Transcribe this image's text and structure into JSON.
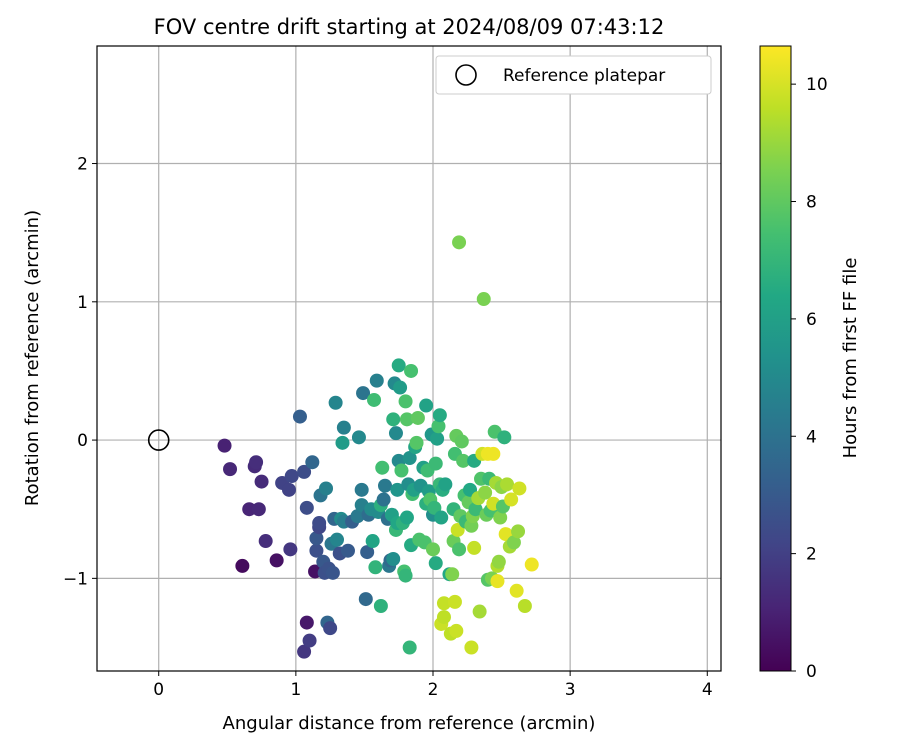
{
  "chart_data": {
    "type": "scatter",
    "title": "FOV centre drift starting at 2024/08/09 07:43:12",
    "xlabel": "Angular distance from reference (arcmin)",
    "ylabel": "Rotation from reference (arcmin)",
    "xlim": [
      -0.45,
      4.1
    ],
    "ylim": [
      -1.67,
      2.85
    ],
    "xticks": [
      0,
      1,
      2,
      3,
      4
    ],
    "yticks": [
      -1,
      0,
      1,
      2
    ],
    "grid": true,
    "legend": {
      "placement": "top-right",
      "label": "Reference platepar"
    },
    "reference_point": {
      "x": 0,
      "y": 0
    },
    "colorbar": {
      "label": "Hours from first FF file",
      "colormap": "viridis",
      "range": [
        0,
        10.65
      ],
      "ticks": [
        0,
        2,
        4,
        6,
        8,
        10
      ]
    },
    "points": [
      {
        "x": 0.48,
        "y": -0.04,
        "h": 1.0
      },
      {
        "x": 0.52,
        "y": -0.21,
        "h": 1.2
      },
      {
        "x": 0.61,
        "y": -0.91,
        "h": 0.3
      },
      {
        "x": 0.66,
        "y": -0.5,
        "h": 1.1
      },
      {
        "x": 0.7,
        "y": -0.19,
        "h": 1.3
      },
      {
        "x": 0.71,
        "y": -0.16,
        "h": 1.4
      },
      {
        "x": 0.73,
        "y": -0.5,
        "h": 1.2
      },
      {
        "x": 0.75,
        "y": -0.3,
        "h": 1.3
      },
      {
        "x": 0.78,
        "y": -0.73,
        "h": 1.4
      },
      {
        "x": 0.86,
        "y": -0.87,
        "h": 0.5
      },
      {
        "x": 0.9,
        "y": -0.31,
        "h": 2.1
      },
      {
        "x": 0.95,
        "y": -0.36,
        "h": 2.1
      },
      {
        "x": 0.96,
        "y": -0.79,
        "h": 1.7
      },
      {
        "x": 0.97,
        "y": -0.26,
        "h": 2.3
      },
      {
        "x": 1.03,
        "y": 0.17,
        "h": 3.2
      },
      {
        "x": 1.06,
        "y": -0.23,
        "h": 2.5
      },
      {
        "x": 1.06,
        "y": -1.53,
        "h": 1.7
      },
      {
        "x": 1.08,
        "y": -1.32,
        "h": 0.7
      },
      {
        "x": 1.08,
        "y": -0.49,
        "h": 2.5
      },
      {
        "x": 1.1,
        "y": -1.45,
        "h": 1.9
      },
      {
        "x": 1.12,
        "y": -0.16,
        "h": 3.5
      },
      {
        "x": 1.14,
        "y": -0.95,
        "h": 0.5
      },
      {
        "x": 1.15,
        "y": -0.8,
        "h": 2.6
      },
      {
        "x": 1.15,
        "y": -0.71,
        "h": 2.9
      },
      {
        "x": 1.17,
        "y": -0.63,
        "h": 2.2
      },
      {
        "x": 1.17,
        "y": -0.6,
        "h": 2.4
      },
      {
        "x": 1.18,
        "y": -0.4,
        "h": 4.1
      },
      {
        "x": 1.2,
        "y": -0.88,
        "h": 2.9
      },
      {
        "x": 1.21,
        "y": -0.96,
        "h": 2.6
      },
      {
        "x": 1.22,
        "y": -0.35,
        "h": 4.6
      },
      {
        "x": 1.23,
        "y": -1.32,
        "h": 3.5
      },
      {
        "x": 1.24,
        "y": -0.93,
        "h": 2.7
      },
      {
        "x": 1.25,
        "y": -1.36,
        "h": 2.3
      },
      {
        "x": 1.26,
        "y": -0.75,
        "h": 4.2
      },
      {
        "x": 1.27,
        "y": -0.96,
        "h": 2.8
      },
      {
        "x": 1.28,
        "y": -0.57,
        "h": 3.5
      },
      {
        "x": 1.29,
        "y": 0.27,
        "h": 4.8
      },
      {
        "x": 1.3,
        "y": -0.72,
        "h": 4.8
      },
      {
        "x": 1.32,
        "y": -0.82,
        "h": 2.6
      },
      {
        "x": 1.33,
        "y": -0.57,
        "h": 5.1
      },
      {
        "x": 1.34,
        "y": -0.02,
        "h": 5.8
      },
      {
        "x": 1.35,
        "y": 0.09,
        "h": 4.6
      },
      {
        "x": 1.35,
        "y": -0.59,
        "h": 4.5
      },
      {
        "x": 1.38,
        "y": -0.8,
        "h": 3.0
      },
      {
        "x": 1.41,
        "y": -0.59,
        "h": 3.2
      },
      {
        "x": 1.45,
        "y": -0.55,
        "h": 4.3
      },
      {
        "x": 1.46,
        "y": 0.02,
        "h": 5.0
      },
      {
        "x": 1.48,
        "y": -0.36,
        "h": 4.3
      },
      {
        "x": 1.48,
        "y": -0.47,
        "h": 4.6
      },
      {
        "x": 1.49,
        "y": 0.34,
        "h": 4.1
      },
      {
        "x": 1.51,
        "y": -1.15,
        "h": 3.6
      },
      {
        "x": 1.52,
        "y": -0.81,
        "h": 3.2
      },
      {
        "x": 1.53,
        "y": -0.54,
        "h": 3.8
      },
      {
        "x": 1.55,
        "y": -0.5,
        "h": 5.1
      },
      {
        "x": 1.56,
        "y": -0.73,
        "h": 6.2
      },
      {
        "x": 1.57,
        "y": 0.29,
        "h": 7.3
      },
      {
        "x": 1.58,
        "y": -0.92,
        "h": 6.9
      },
      {
        "x": 1.59,
        "y": 0.43,
        "h": 4.6
      },
      {
        "x": 1.6,
        "y": -0.52,
        "h": 5.1
      },
      {
        "x": 1.62,
        "y": -1.2,
        "h": 6.8
      },
      {
        "x": 1.62,
        "y": -0.47,
        "h": 6.7
      },
      {
        "x": 1.63,
        "y": -0.2,
        "h": 7.4
      },
      {
        "x": 1.64,
        "y": -0.43,
        "h": 4.0
      },
      {
        "x": 1.65,
        "y": -0.33,
        "h": 4.3
      },
      {
        "x": 1.67,
        "y": -0.57,
        "h": 3.9
      },
      {
        "x": 1.68,
        "y": -0.91,
        "h": 4.2
      },
      {
        "x": 1.69,
        "y": -0.87,
        "h": 3.6
      },
      {
        "x": 1.7,
        "y": -0.54,
        "h": 6.0
      },
      {
        "x": 1.71,
        "y": 0.15,
        "h": 6.8
      },
      {
        "x": 1.71,
        "y": -0.86,
        "h": 5.2
      },
      {
        "x": 1.72,
        "y": 0.41,
        "h": 5.0
      },
      {
        "x": 1.73,
        "y": 0.05,
        "h": 5.0
      },
      {
        "x": 1.73,
        "y": -0.65,
        "h": 7.1
      },
      {
        "x": 1.74,
        "y": -0.6,
        "h": 6.3
      },
      {
        "x": 1.74,
        "y": -0.36,
        "h": 5.5
      },
      {
        "x": 1.75,
        "y": 0.54,
        "h": 6.5
      },
      {
        "x": 1.75,
        "y": -0.15,
        "h": 5.0
      },
      {
        "x": 1.76,
        "y": 0.38,
        "h": 5.8
      },
      {
        "x": 1.77,
        "y": -0.22,
        "h": 7.5
      },
      {
        "x": 1.78,
        "y": -0.6,
        "h": 6.8
      },
      {
        "x": 1.79,
        "y": -0.95,
        "h": 7.5
      },
      {
        "x": 1.8,
        "y": -0.98,
        "h": 7.0
      },
      {
        "x": 1.8,
        "y": 0.28,
        "h": 7.6
      },
      {
        "x": 1.81,
        "y": -0.56,
        "h": 6.3
      },
      {
        "x": 1.81,
        "y": 0.15,
        "h": 7.8
      },
      {
        "x": 1.82,
        "y": -0.32,
        "h": 5.2
      },
      {
        "x": 1.83,
        "y": -1.5,
        "h": 7.0
      },
      {
        "x": 1.83,
        "y": -0.13,
        "h": 5.4
      },
      {
        "x": 1.84,
        "y": 0.5,
        "h": 7.5
      },
      {
        "x": 1.84,
        "y": -0.76,
        "h": 6.5
      },
      {
        "x": 1.85,
        "y": -0.39,
        "h": 7.4
      },
      {
        "x": 1.86,
        "y": -0.36,
        "h": 6.0
      },
      {
        "x": 1.87,
        "y": -0.05,
        "h": 6.2
      },
      {
        "x": 1.88,
        "y": -0.02,
        "h": 7.8
      },
      {
        "x": 1.89,
        "y": 0.16,
        "h": 8.0
      },
      {
        "x": 1.9,
        "y": -0.72,
        "h": 7.6
      },
      {
        "x": 1.91,
        "y": -0.33,
        "h": 5.4
      },
      {
        "x": 1.93,
        "y": -0.2,
        "h": 6.0
      },
      {
        "x": 1.94,
        "y": -0.74,
        "h": 7.6
      },
      {
        "x": 1.95,
        "y": -0.46,
        "h": 6.7
      },
      {
        "x": 1.95,
        "y": 0.25,
        "h": 6.1
      },
      {
        "x": 1.96,
        "y": -0.22,
        "h": 7.3
      },
      {
        "x": 1.97,
        "y": -0.37,
        "h": 5.8
      },
      {
        "x": 1.98,
        "y": -0.43,
        "h": 7.7
      },
      {
        "x": 1.99,
        "y": 0.04,
        "h": 5.6
      },
      {
        "x": 2.0,
        "y": -0.54,
        "h": 5.2
      },
      {
        "x": 2.0,
        "y": -0.79,
        "h": 8.2
      },
      {
        "x": 2.01,
        "y": -0.49,
        "h": 7.0
      },
      {
        "x": 2.02,
        "y": -0.89,
        "h": 6.5
      },
      {
        "x": 2.02,
        "y": -0.17,
        "h": 7.2
      },
      {
        "x": 2.03,
        "y": 0.01,
        "h": 6.0
      },
      {
        "x": 2.04,
        "y": 0.1,
        "h": 7.5
      },
      {
        "x": 2.05,
        "y": -0.32,
        "h": 7.1
      },
      {
        "x": 2.05,
        "y": 0.18,
        "h": 6.5
      },
      {
        "x": 2.06,
        "y": -0.56,
        "h": 6.2
      },
      {
        "x": 2.06,
        "y": -1.33,
        "h": 9.8
      },
      {
        "x": 2.07,
        "y": -0.36,
        "h": 6.6
      },
      {
        "x": 2.08,
        "y": -1.18,
        "h": 9.7
      },
      {
        "x": 2.08,
        "y": -1.28,
        "h": 9.6
      },
      {
        "x": 2.09,
        "y": -0.32,
        "h": 6.1
      },
      {
        "x": 2.12,
        "y": -0.97,
        "h": 6.4
      },
      {
        "x": 2.13,
        "y": -1.4,
        "h": 9.6
      },
      {
        "x": 2.14,
        "y": -0.97,
        "h": 8.6
      },
      {
        "x": 2.15,
        "y": -0.73,
        "h": 8.2
      },
      {
        "x": 2.15,
        "y": -0.5,
        "h": 6.9
      },
      {
        "x": 2.16,
        "y": -0.1,
        "h": 7.4
      },
      {
        "x": 2.16,
        "y": -1.17,
        "h": 9.8
      },
      {
        "x": 2.17,
        "y": -1.38,
        "h": 9.8
      },
      {
        "x": 2.17,
        "y": 0.03,
        "h": 8.1
      },
      {
        "x": 2.18,
        "y": -0.65,
        "h": 9.8
      },
      {
        "x": 2.19,
        "y": 1.43,
        "h": 8.5
      },
      {
        "x": 2.19,
        "y": -0.79,
        "h": 7.6
      },
      {
        "x": 2.2,
        "y": -0.55,
        "h": 8.0
      },
      {
        "x": 2.21,
        "y": -0.01,
        "h": 8.0
      },
      {
        "x": 2.22,
        "y": -0.15,
        "h": 7.8
      },
      {
        "x": 2.23,
        "y": -0.4,
        "h": 7.5
      },
      {
        "x": 2.24,
        "y": -0.59,
        "h": 7.2
      },
      {
        "x": 2.26,
        "y": -0.45,
        "h": 8.1
      },
      {
        "x": 2.27,
        "y": -0.36,
        "h": 6.4
      },
      {
        "x": 2.28,
        "y": -0.62,
        "h": 8.4
      },
      {
        "x": 2.28,
        "y": -1.5,
        "h": 9.8
      },
      {
        "x": 2.29,
        "y": -0.55,
        "h": 8.6
      },
      {
        "x": 2.3,
        "y": -0.15,
        "h": 6.5
      },
      {
        "x": 2.3,
        "y": -0.78,
        "h": 9.7
      },
      {
        "x": 2.31,
        "y": -0.5,
        "h": 7.2
      },
      {
        "x": 2.33,
        "y": -0.42,
        "h": 9.2
      },
      {
        "x": 2.34,
        "y": -1.24,
        "h": 9.2
      },
      {
        "x": 2.35,
        "y": -0.28,
        "h": 7.7
      },
      {
        "x": 2.36,
        "y": -0.1,
        "h": 9.9
      },
      {
        "x": 2.37,
        "y": 1.02,
        "h": 8.5
      },
      {
        "x": 2.38,
        "y": -0.38,
        "h": 8.8
      },
      {
        "x": 2.39,
        "y": -0.54,
        "h": 8.2
      },
      {
        "x": 2.4,
        "y": -1.01,
        "h": 7.8
      },
      {
        "x": 2.4,
        "y": -0.1,
        "h": 10.4
      },
      {
        "x": 2.41,
        "y": -0.28,
        "h": 7.2
      },
      {
        "x": 2.42,
        "y": -0.51,
        "h": 7.5
      },
      {
        "x": 2.43,
        "y": -1.0,
        "h": 8.5
      },
      {
        "x": 2.44,
        "y": -0.46,
        "h": 9.9
      },
      {
        "x": 2.44,
        "y": -0.1,
        "h": 10.4
      },
      {
        "x": 2.45,
        "y": 0.06,
        "h": 7.6
      },
      {
        "x": 2.46,
        "y": -0.31,
        "h": 9.2
      },
      {
        "x": 2.47,
        "y": -1.02,
        "h": 10.3
      },
      {
        "x": 2.47,
        "y": -0.91,
        "h": 9.4
      },
      {
        "x": 2.48,
        "y": -0.88,
        "h": 8.9
      },
      {
        "x": 2.49,
        "y": -0.56,
        "h": 8.6
      },
      {
        "x": 2.5,
        "y": -0.34,
        "h": 8.8
      },
      {
        "x": 2.51,
        "y": -0.48,
        "h": 7.8
      },
      {
        "x": 2.52,
        "y": 0.02,
        "h": 6.8
      },
      {
        "x": 2.53,
        "y": -0.68,
        "h": 10.2
      },
      {
        "x": 2.54,
        "y": -0.32,
        "h": 9.3
      },
      {
        "x": 2.56,
        "y": -0.77,
        "h": 9.2
      },
      {
        "x": 2.57,
        "y": -0.43,
        "h": 10.0
      },
      {
        "x": 2.59,
        "y": -0.74,
        "h": 8.6
      },
      {
        "x": 2.61,
        "y": -1.09,
        "h": 10.2
      },
      {
        "x": 2.62,
        "y": -0.66,
        "h": 9.0
      },
      {
        "x": 2.63,
        "y": -0.35,
        "h": 9.9
      },
      {
        "x": 2.67,
        "y": -1.2,
        "h": 9.5
      },
      {
        "x": 2.72,
        "y": -0.9,
        "h": 10.4
      }
    ]
  }
}
